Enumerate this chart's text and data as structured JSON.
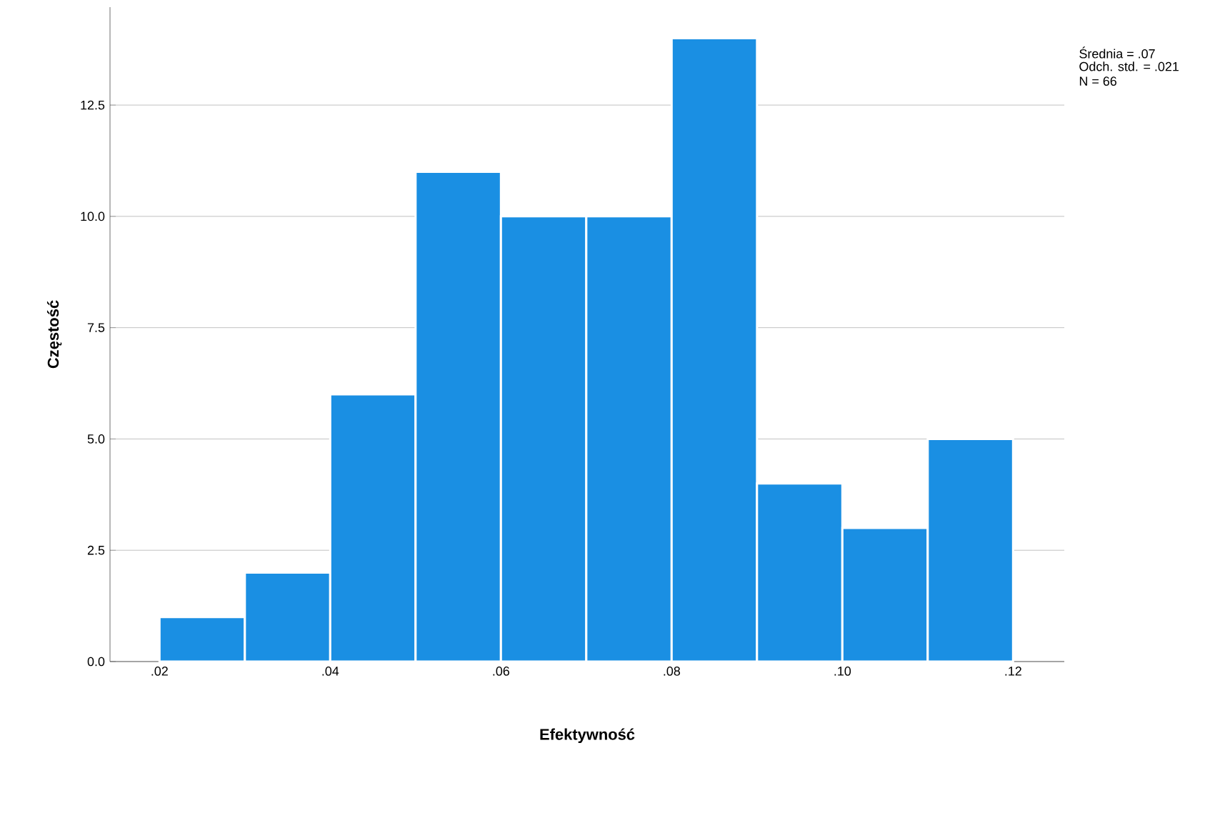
{
  "chart_data": {
    "type": "histogram",
    "xlabel": "Efektywność",
    "ylabel": "Częstość",
    "bins": [
      0.02,
      0.03,
      0.04,
      0.05,
      0.06,
      0.07,
      0.08,
      0.09,
      0.1,
      0.11,
      0.12
    ],
    "values": [
      1,
      2,
      6,
      11,
      10,
      10,
      14,
      4,
      3,
      5
    ],
    "color": "#1a8fe3",
    "xlim": [
      0.0142,
      0.126
    ],
    "ylim": [
      0,
      14.7
    ],
    "xticks": [
      {
        "value": 0.02,
        "label": ".02"
      },
      {
        "value": 0.04,
        "label": ".04"
      },
      {
        "value": 0.06,
        "label": ".06"
      },
      {
        "value": 0.08,
        "label": ".08"
      },
      {
        "value": 0.1,
        "label": ".10"
      },
      {
        "value": 0.12,
        "label": ".12"
      }
    ],
    "yticks": [
      {
        "value": 0,
        "label": "0.0"
      },
      {
        "value": 2.5,
        "label": "2.5"
      },
      {
        "value": 5,
        "label": "5.0"
      },
      {
        "value": 7.5,
        "label": "7.5"
      },
      {
        "value": 10,
        "label": "10.0"
      },
      {
        "value": 12.5,
        "label": "12.5"
      }
    ],
    "grid": "y",
    "annotations": [
      "Średnia = .07",
      "Odch. std. = .021",
      "N = 66"
    ]
  }
}
